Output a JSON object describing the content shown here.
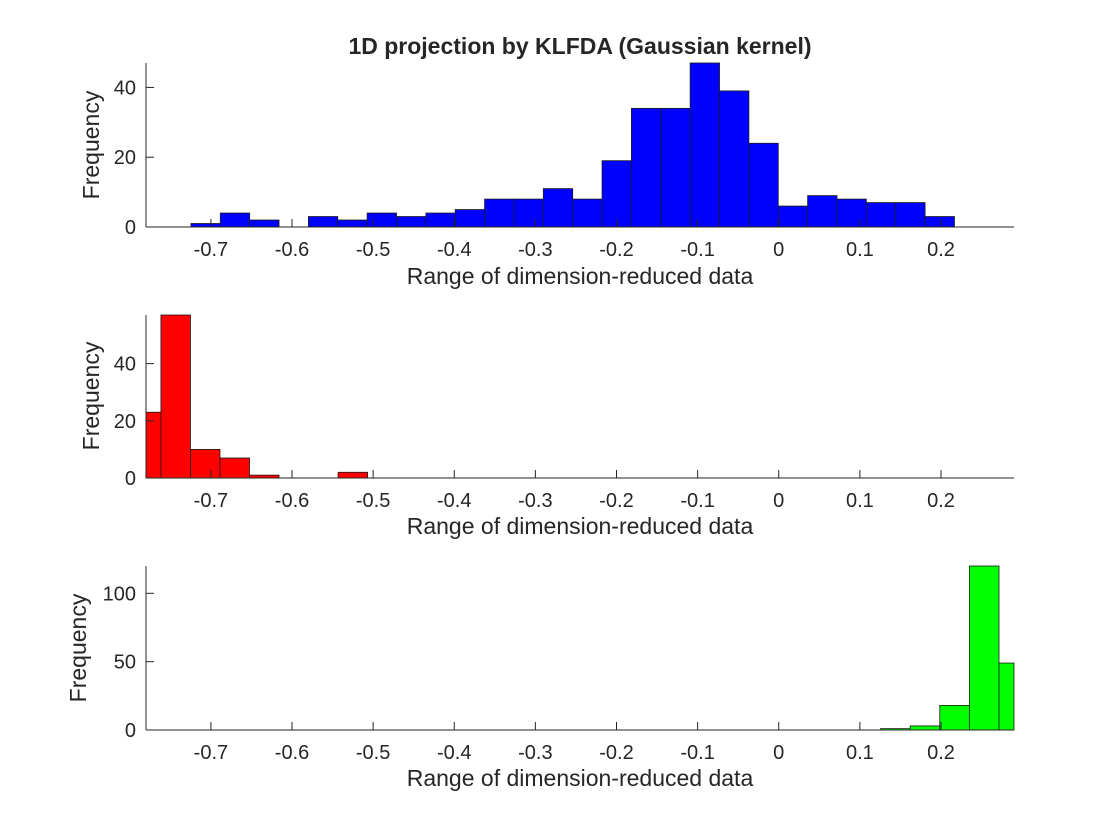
{
  "chart_data": [
    {
      "type": "bar",
      "title": "1D projection by KLFDA (Gaussian kernel)",
      "xlabel": "Range of dimension-reduced data",
      "ylabel": "Frequency",
      "xlim": [
        -0.78,
        0.29
      ],
      "ylim": [
        0,
        47
      ],
      "xticks": [
        "-0.7",
        "-0.6",
        "-0.5",
        "-0.4",
        "-0.3",
        "-0.2",
        "-0.1",
        "0",
        "0.1",
        "0.2"
      ],
      "yticks": [
        "0",
        "20",
        "40"
      ],
      "color": "#0000ff",
      "bin_width": 0.0362,
      "bin_starts": [
        -0.7246,
        -0.6884,
        -0.6522,
        -0.616,
        -0.5798,
        -0.5436,
        -0.5074,
        -0.4712,
        -0.435,
        -0.3988,
        -0.3626,
        -0.3264,
        -0.2902,
        -0.254,
        -0.2178,
        -0.1816,
        -0.1454,
        -0.1092,
        -0.073,
        -0.0368,
        -0.0006,
        0.0356,
        0.0718,
        0.108,
        0.1442,
        0.1804
      ],
      "values": [
        1,
        4,
        2,
        0,
        3,
        2,
        4,
        3,
        4,
        5,
        8,
        8,
        11,
        8,
        19,
        34,
        34,
        47,
        39,
        24,
        6,
        9,
        8,
        7,
        7,
        3
      ]
    },
    {
      "type": "bar",
      "xlabel": "Range of dimension-reduced data",
      "ylabel": "Frequency",
      "xlim": [
        -0.78,
        0.29
      ],
      "ylim": [
        0,
        57
      ],
      "xticks": [
        "-0.7",
        "-0.6",
        "-0.5",
        "-0.4",
        "-0.3",
        "-0.2",
        "-0.1",
        "0",
        "0.1",
        "0.2"
      ],
      "yticks": [
        "0",
        "20",
        "40"
      ],
      "color": "#ff0000",
      "bin_width": 0.0364,
      "bin_starts": [
        -0.798,
        -0.7616,
        -0.7252,
        -0.6888,
        -0.6524,
        -0.616,
        -0.5796,
        -0.5432
      ],
      "values": [
        23,
        57,
        10,
        7,
        1,
        0,
        0,
        2
      ]
    },
    {
      "type": "bar",
      "xlabel": "Range of dimension-reduced data",
      "ylabel": "Frequency",
      "xlim": [
        -0.78,
        0.29
      ],
      "ylim": [
        0,
        120
      ],
      "xticks": [
        "-0.7",
        "-0.6",
        "-0.5",
        "-0.4",
        "-0.3",
        "-0.2",
        "-0.1",
        "0",
        "0.1",
        "0.2"
      ],
      "yticks": [
        "0",
        "50",
        "100"
      ],
      "color": "#00ff00",
      "bin_width": 0.0365,
      "bin_starts": [
        0.1255,
        0.162,
        0.1985,
        0.235,
        0.2715
      ],
      "values": [
        1,
        3,
        18,
        120,
        49
      ]
    }
  ]
}
